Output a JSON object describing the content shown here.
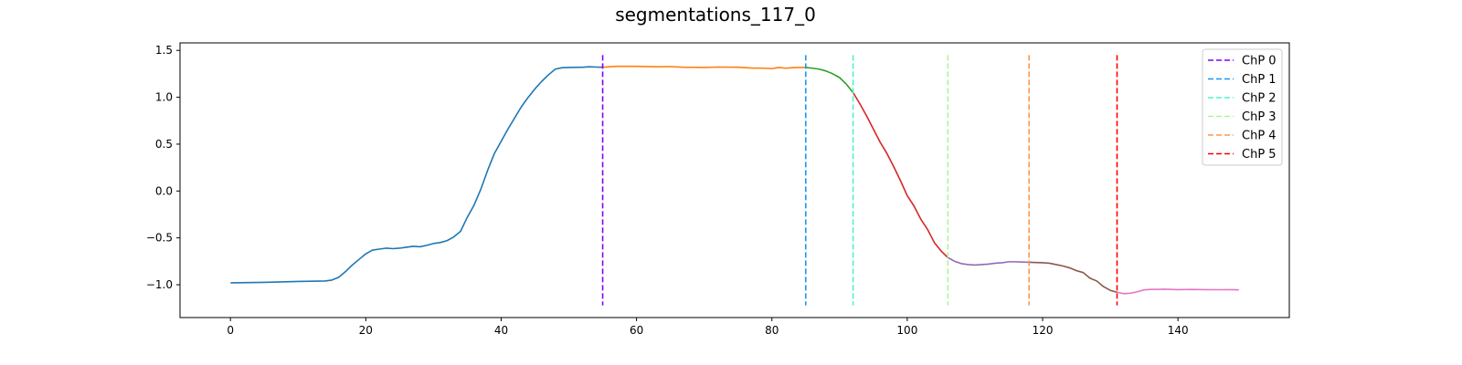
{
  "chart_data": {
    "type": "line",
    "title": "segmentations_117_0",
    "xlabel": "",
    "ylabel": "",
    "xlim": [
      -7.45,
      156.45
    ],
    "ylim": [
      -1.35,
      1.58
    ],
    "xticks": [
      0,
      20,
      40,
      60,
      80,
      100,
      120,
      140
    ],
    "yticks": [
      -1.0,
      -0.5,
      0.0,
      0.5,
      1.0,
      1.5
    ],
    "ytick_labels": [
      "−1.0",
      "−0.5",
      "0.0",
      "0.5",
      "1.0",
      "1.5"
    ],
    "grid": false,
    "legend_position": "top-right",
    "segments": [
      {
        "color": "#1f77b4",
        "points": [
          [
            0,
            -0.98
          ],
          [
            5,
            -0.975
          ],
          [
            10,
            -0.965
          ],
          [
            14,
            -0.96
          ],
          [
            15,
            -0.95
          ],
          [
            16,
            -0.92
          ],
          [
            17,
            -0.86
          ],
          [
            18,
            -0.79
          ],
          [
            19,
            -0.73
          ],
          [
            20,
            -0.67
          ],
          [
            21,
            -0.63
          ],
          [
            22,
            -0.62
          ],
          [
            23,
            -0.61
          ],
          [
            24,
            -0.615
          ],
          [
            25,
            -0.61
          ],
          [
            26,
            -0.6
          ],
          [
            27,
            -0.59
          ],
          [
            28,
            -0.595
          ],
          [
            29,
            -0.58
          ],
          [
            30,
            -0.56
          ],
          [
            31,
            -0.55
          ],
          [
            32,
            -0.53
          ],
          [
            33,
            -0.49
          ],
          [
            34,
            -0.43
          ],
          [
            35,
            -0.28
          ],
          [
            36,
            -0.15
          ],
          [
            37,
            0.02
          ],
          [
            38,
            0.22
          ],
          [
            39,
            0.4
          ],
          [
            40,
            0.53
          ],
          [
            41,
            0.66
          ],
          [
            42,
            0.78
          ],
          [
            43,
            0.9
          ],
          [
            44,
            1.0
          ],
          [
            45,
            1.09
          ],
          [
            46,
            1.17
          ],
          [
            47,
            1.24
          ],
          [
            48,
            1.3
          ],
          [
            49,
            1.315
          ],
          [
            50,
            1.318
          ],
          [
            52,
            1.32
          ],
          [
            53,
            1.325
          ],
          [
            54,
            1.322
          ],
          [
            55,
            1.32
          ]
        ]
      },
      {
        "color": "#ff7f0e",
        "points": [
          [
            55,
            1.32
          ],
          [
            57,
            1.33
          ],
          [
            60,
            1.33
          ],
          [
            63,
            1.325
          ],
          [
            65,
            1.327
          ],
          [
            67,
            1.32
          ],
          [
            70,
            1.318
          ],
          [
            72,
            1.322
          ],
          [
            75,
            1.32
          ],
          [
            77,
            1.312
          ],
          [
            79,
            1.31
          ],
          [
            80,
            1.305
          ],
          [
            81,
            1.318
          ],
          [
            82,
            1.31
          ],
          [
            83,
            1.315
          ],
          [
            84,
            1.318
          ],
          [
            85,
            1.318
          ]
        ]
      },
      {
        "color": "#2ca02c",
        "points": [
          [
            85,
            1.318
          ],
          [
            86,
            1.31
          ],
          [
            87,
            1.3
          ],
          [
            88,
            1.28
          ],
          [
            89,
            1.25
          ],
          [
            90,
            1.21
          ],
          [
            91,
            1.14
          ],
          [
            92,
            1.05
          ]
        ]
      },
      {
        "color": "#d62728",
        "points": [
          [
            92,
            1.05
          ],
          [
            93,
            0.93
          ],
          [
            94,
            0.8
          ],
          [
            95,
            0.66
          ],
          [
            96,
            0.52
          ],
          [
            97,
            0.4
          ],
          [
            98,
            0.26
          ],
          [
            99,
            0.11
          ],
          [
            100,
            -0.05
          ],
          [
            101,
            -0.16
          ],
          [
            102,
            -0.3
          ],
          [
            103,
            -0.41
          ],
          [
            104,
            -0.55
          ],
          [
            105,
            -0.64
          ],
          [
            106,
            -0.71
          ]
        ]
      },
      {
        "color": "#9467bd",
        "points": [
          [
            106,
            -0.71
          ],
          [
            107,
            -0.75
          ],
          [
            108,
            -0.775
          ],
          [
            109,
            -0.785
          ],
          [
            110,
            -0.79
          ],
          [
            111,
            -0.785
          ],
          [
            112,
            -0.78
          ],
          [
            113,
            -0.77
          ],
          [
            114,
            -0.765
          ],
          [
            115,
            -0.755
          ],
          [
            116,
            -0.755
          ],
          [
            117,
            -0.758
          ],
          [
            118,
            -0.76
          ]
        ]
      },
      {
        "color": "#8c564b",
        "points": [
          [
            118,
            -0.76
          ],
          [
            120,
            -0.765
          ],
          [
            121,
            -0.77
          ],
          [
            122,
            -0.785
          ],
          [
            123,
            -0.8
          ],
          [
            124,
            -0.82
          ],
          [
            125,
            -0.85
          ],
          [
            126,
            -0.87
          ],
          [
            127,
            -0.93
          ],
          [
            128,
            -0.96
          ],
          [
            129,
            -1.02
          ],
          [
            130,
            -1.06
          ],
          [
            131,
            -1.08
          ]
        ]
      },
      {
        "color": "#e377c2",
        "points": [
          [
            131,
            -1.08
          ],
          [
            132,
            -1.095
          ],
          [
            133,
            -1.09
          ],
          [
            134,
            -1.075
          ],
          [
            135,
            -1.055
          ],
          [
            136,
            -1.05
          ],
          [
            138,
            -1.048
          ],
          [
            140,
            -1.052
          ],
          [
            142,
            -1.05
          ],
          [
            144,
            -1.052
          ],
          [
            146,
            -1.053
          ],
          [
            148,
            -1.052
          ],
          [
            149,
            -1.055
          ]
        ]
      }
    ],
    "changepoints": [
      {
        "name": "ChP 0",
        "x": 55,
        "color": "#7f00ff"
      },
      {
        "name": "ChP 1",
        "x": 85,
        "color": "#1996f3"
      },
      {
        "name": "ChP 2",
        "x": 92,
        "color": "#4df3ce"
      },
      {
        "name": "ChP 3",
        "x": 106,
        "color": "#b2f396"
      },
      {
        "name": "ChP 4",
        "x": 118,
        "color": "#ff964f"
      },
      {
        "name": "ChP 5",
        "x": 131,
        "color": "#ff0000"
      }
    ],
    "changepoint_y_range": [
      -1.22,
      1.45
    ]
  }
}
